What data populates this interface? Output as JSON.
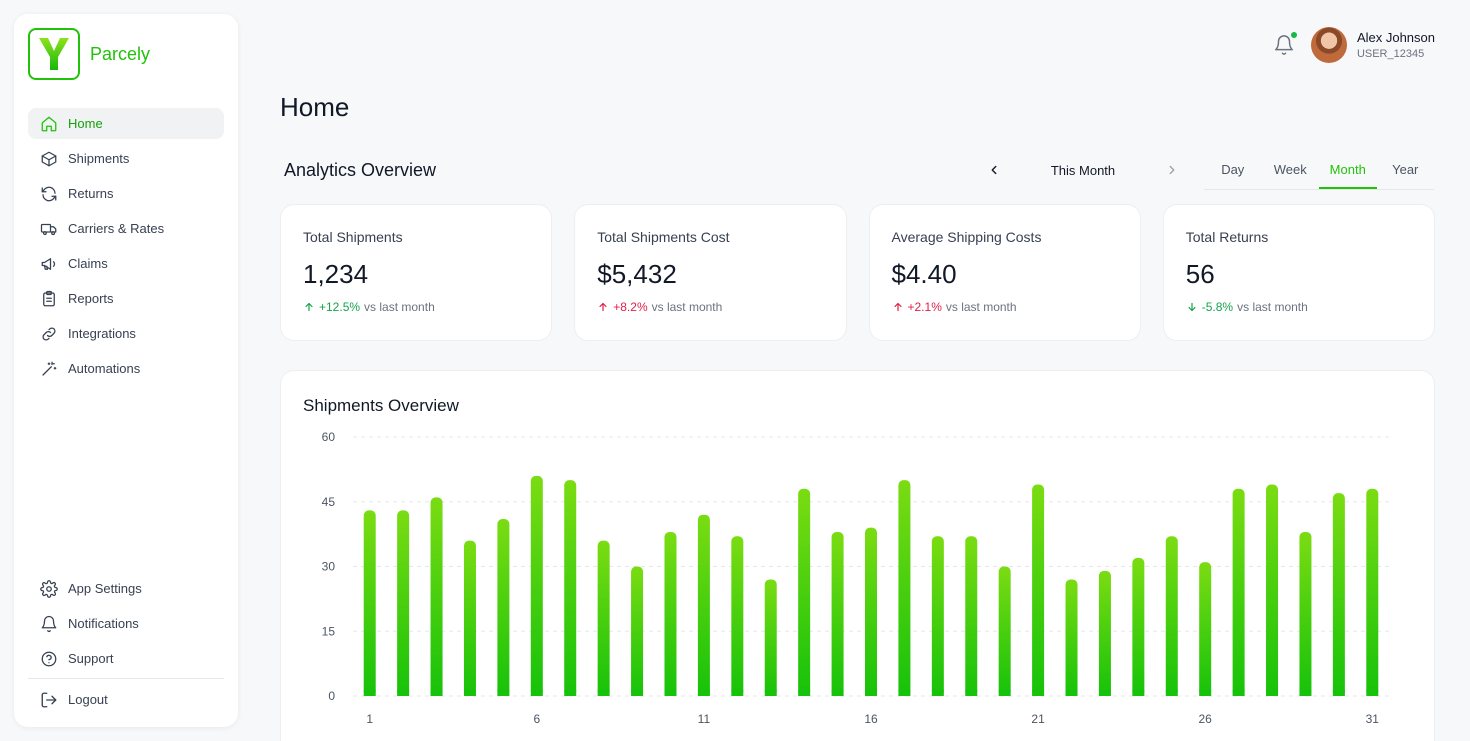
{
  "brand": {
    "name": "Parcely",
    "logo_letter": "Y",
    "accent": "#22c20a"
  },
  "sidebar": {
    "items": [
      {
        "label": "Home",
        "icon": "home-icon",
        "active": true
      },
      {
        "label": "Shipments",
        "icon": "box-icon"
      },
      {
        "label": "Returns",
        "icon": "refresh-icon"
      },
      {
        "label": "Carriers & Rates",
        "icon": "truck-icon"
      },
      {
        "label": "Claims",
        "icon": "megaphone-icon"
      },
      {
        "label": "Reports",
        "icon": "clipboard-icon"
      },
      {
        "label": "Integrations",
        "icon": "link-icon"
      },
      {
        "label": "Automations",
        "icon": "magic-wand-icon"
      }
    ],
    "bottom": [
      {
        "label": "App Settings",
        "icon": "gear-icon"
      },
      {
        "label": "Notifications",
        "icon": "bell-icon"
      },
      {
        "label": "Support",
        "icon": "help-icon"
      }
    ],
    "logout": "Logout"
  },
  "user": {
    "name": "Alex Johnson",
    "id": "USER_12345"
  },
  "page": {
    "title": "Home"
  },
  "analytics": {
    "title": "Analytics Overview",
    "period": "This Month",
    "tabs": [
      "Day",
      "Week",
      "Month",
      "Year"
    ],
    "active_tab": "Month"
  },
  "cards": [
    {
      "title": "Total Shipments",
      "value": "1,234",
      "delta": "+12.5%",
      "direction": "up",
      "tone": "green",
      "suffix": "vs last month"
    },
    {
      "title": "Total Shipments Cost",
      "value": "$5,432",
      "delta": "+8.2%",
      "direction": "up",
      "tone": "red",
      "suffix": "vs last month"
    },
    {
      "title": "Average Shipping Costs",
      "value": "$4.40",
      "delta": "+2.1%",
      "direction": "up",
      "tone": "red",
      "suffix": "vs last month"
    },
    {
      "title": "Total Returns",
      "value": "56",
      "delta": "-5.8%",
      "direction": "down",
      "tone": "green",
      "suffix": "vs last month"
    }
  ],
  "chart_data": {
    "type": "bar",
    "title": "Shipments Overview",
    "x": [
      1,
      2,
      3,
      4,
      5,
      6,
      7,
      8,
      9,
      10,
      11,
      12,
      13,
      14,
      15,
      16,
      17,
      18,
      19,
      20,
      21,
      22,
      23,
      24,
      25,
      26,
      27,
      28,
      29,
      30,
      31
    ],
    "values": [
      43,
      43,
      46,
      36,
      41,
      51,
      50,
      36,
      30,
      38,
      42,
      37,
      27,
      48,
      38,
      39,
      50,
      37,
      37,
      30,
      49,
      27,
      29,
      32,
      37,
      31,
      48,
      49,
      38,
      47,
      48
    ],
    "xticks": [
      1,
      6,
      11,
      16,
      21,
      26,
      31
    ],
    "yticks": [
      0,
      15,
      30,
      45,
      60
    ],
    "ylim": [
      0,
      60
    ],
    "grid": true,
    "bar_color_top": "#7bdc12",
    "bar_color_bottom": "#16c20a"
  }
}
